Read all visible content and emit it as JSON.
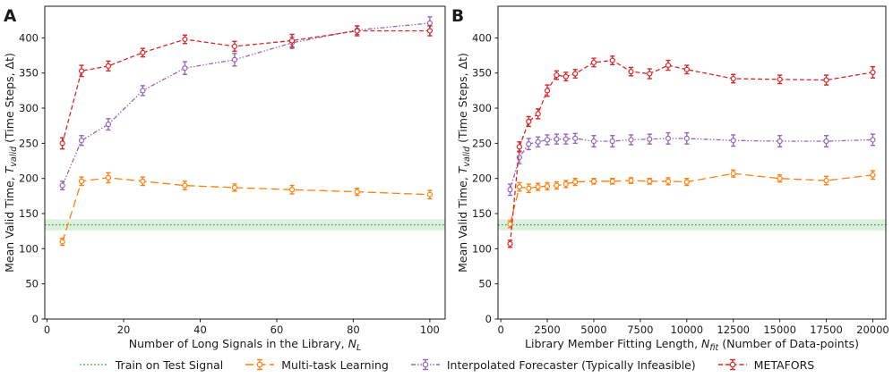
{
  "chart_data": [
    {
      "type": "line",
      "panel_label": "A",
      "xlabel": "Number of Long Signals in the Library, N_L",
      "xlabel_rich": [
        {
          "t": "Number of Long Signals in the Library, "
        },
        {
          "t": "N",
          "i": 1
        },
        {
          "t": "L",
          "i": 1,
          "sub": 1
        }
      ],
      "ylabel": "Mean Valid Time, T_valid (Time Steps, Δt)",
      "ylabel_rich": [
        {
          "t": "Mean Valid Time, "
        },
        {
          "t": "T",
          "i": 1
        },
        {
          "t": "valid",
          "i": 1,
          "sub": 1
        },
        {
          "t": " (Time Steps, Δt)"
        }
      ],
      "xlim": [
        -0.6,
        104
      ],
      "ylim": [
        0,
        445
      ],
      "xticks": [
        0,
        20,
        40,
        60,
        80,
        100
      ],
      "yticks": [
        0,
        50,
        100,
        150,
        200,
        250,
        300,
        350,
        400
      ],
      "grid": false,
      "baseline": {
        "name": "Train on Test Signal",
        "value": 134,
        "band": [
          126,
          142
        ],
        "color": "#2ca02c"
      },
      "series": [
        {
          "name": "Multi-task Learning",
          "color": "#ff7f0e",
          "dash": "9,4.5",
          "x": [
            4,
            9,
            16,
            25,
            36,
            49,
            64,
            81,
            100
          ],
          "y": [
            110,
            196,
            201,
            196,
            190,
            187,
            184,
            181,
            177
          ],
          "yerr": [
            5,
            6,
            7,
            6,
            6,
            5,
            6,
            5,
            6
          ]
        },
        {
          "name": "Interpolated Forecaster (Typically Infeasible)",
          "color": "#9467bd",
          "dash": "5,2,1.5,2,1.5,2",
          "x": [
            4,
            9,
            16,
            25,
            36,
            49,
            64,
            81,
            100
          ],
          "y": [
            190,
            254,
            277,
            325,
            357,
            369,
            393,
            411,
            421
          ],
          "yerr": [
            6,
            7,
            8,
            7,
            9,
            9,
            8,
            6,
            9
          ]
        },
        {
          "name": "METAFORS",
          "color": "#d62728",
          "dash": "5,2.8",
          "x": [
            4,
            9,
            16,
            25,
            36,
            49,
            64,
            81,
            100
          ],
          "y": [
            250,
            353,
            360,
            379,
            398,
            388,
            396,
            410,
            410
          ],
          "yerr": [
            8,
            8,
            7,
            6,
            6,
            7,
            9,
            7,
            7
          ]
        }
      ]
    },
    {
      "type": "line",
      "panel_label": "B",
      "xlabel": "Library Member Fitting Length, N_fit (Number of Data-points)",
      "xlabel_rich": [
        {
          "t": "Library Member Fitting Length, "
        },
        {
          "t": "N",
          "i": 1
        },
        {
          "t": "fit",
          "i": 1,
          "sub": 1
        },
        {
          "t": " (Number of Data-points)"
        }
      ],
      "ylabel": "Mean Valid Time, T_valid (Time Steps, Δt)",
      "ylabel_rich": [
        {
          "t": "Mean Valid Time, "
        },
        {
          "t": "T",
          "i": 1
        },
        {
          "t": "valid",
          "i": 1,
          "sub": 1
        },
        {
          "t": " (Time Steps, Δt)"
        }
      ],
      "xlim": [
        -150,
        20700
      ],
      "ylim": [
        0,
        445
      ],
      "xticks": [
        0,
        2500,
        5000,
        7500,
        10000,
        12500,
        15000,
        17500,
        20000
      ],
      "yticks": [
        0,
        50,
        100,
        150,
        200,
        250,
        300,
        350,
        400
      ],
      "grid": false,
      "baseline": {
        "name": "Train on Test Signal",
        "value": 134,
        "band": [
          126,
          142
        ],
        "color": "#2ca02c"
      },
      "series": [
        {
          "name": "Multi-task Learning",
          "color": "#ff7f0e",
          "dash": "9,4.5",
          "x": [
            500,
            1000,
            1500,
            2000,
            2500,
            3000,
            3500,
            4000,
            5000,
            6000,
            7000,
            8000,
            9000,
            10000,
            12500,
            15000,
            17500,
            20000
          ],
          "y": [
            135,
            188,
            186,
            188,
            189,
            190,
            192,
            195,
            196,
            196,
            197,
            196,
            196,
            195,
            207,
            200,
            197,
            205
          ],
          "yerr": [
            5,
            6,
            6,
            5,
            5,
            5,
            5,
            5,
            4,
            4,
            4,
            4,
            5,
            5,
            5,
            5,
            6,
            6
          ]
        },
        {
          "name": "Interpolated Forecaster (Typically Infeasible)",
          "color": "#9467bd",
          "dash": "5,2,1.5,2,1.5,2",
          "x": [
            500,
            1000,
            1500,
            2000,
            2500,
            3000,
            3500,
            4000,
            5000,
            6000,
            7000,
            8000,
            9000,
            10000,
            12500,
            15000,
            17500,
            20000
          ],
          "y": [
            184,
            230,
            249,
            252,
            255,
            256,
            256,
            257,
            253,
            253,
            255,
            256,
            257,
            257,
            254,
            253,
            253,
            255
          ],
          "yerr": [
            8,
            9,
            8,
            7,
            7,
            7,
            7,
            7,
            8,
            8,
            7,
            7,
            8,
            8,
            8,
            8,
            8,
            8
          ]
        },
        {
          "name": "METAFORS",
          "color": "#d62728",
          "dash": "5,2.8",
          "x": [
            500,
            1000,
            1500,
            2000,
            2500,
            3000,
            3500,
            4000,
            5000,
            6000,
            7000,
            8000,
            9000,
            10000,
            12500,
            15000,
            17500,
            20000
          ],
          "y": [
            107,
            245,
            281,
            292,
            325,
            347,
            345,
            349,
            365,
            368,
            352,
            349,
            361,
            355,
            342,
            341,
            340,
            351
          ],
          "yerr": [
            5,
            7,
            7,
            7,
            8,
            6,
            6,
            6,
            6,
            6,
            6,
            7,
            7,
            6,
            6,
            6,
            7,
            8
          ]
        }
      ]
    }
  ],
  "legend": {
    "items": [
      {
        "label": "Train on Test Signal",
        "color": "#2ca02c",
        "dash": "1.5,2.5",
        "marker": false
      },
      {
        "label": "Multi-task Learning",
        "color": "#ff7f0e",
        "dash": "9,4.5",
        "marker": true
      },
      {
        "label": "Interpolated Forecaster (Typically Infeasible)",
        "color": "#9467bd",
        "dash": "5,2,1.5,2,1.5,2",
        "marker": true
      },
      {
        "label": "METAFORS",
        "color": "#d62728",
        "dash": "5,2.8",
        "marker": true
      }
    ]
  }
}
